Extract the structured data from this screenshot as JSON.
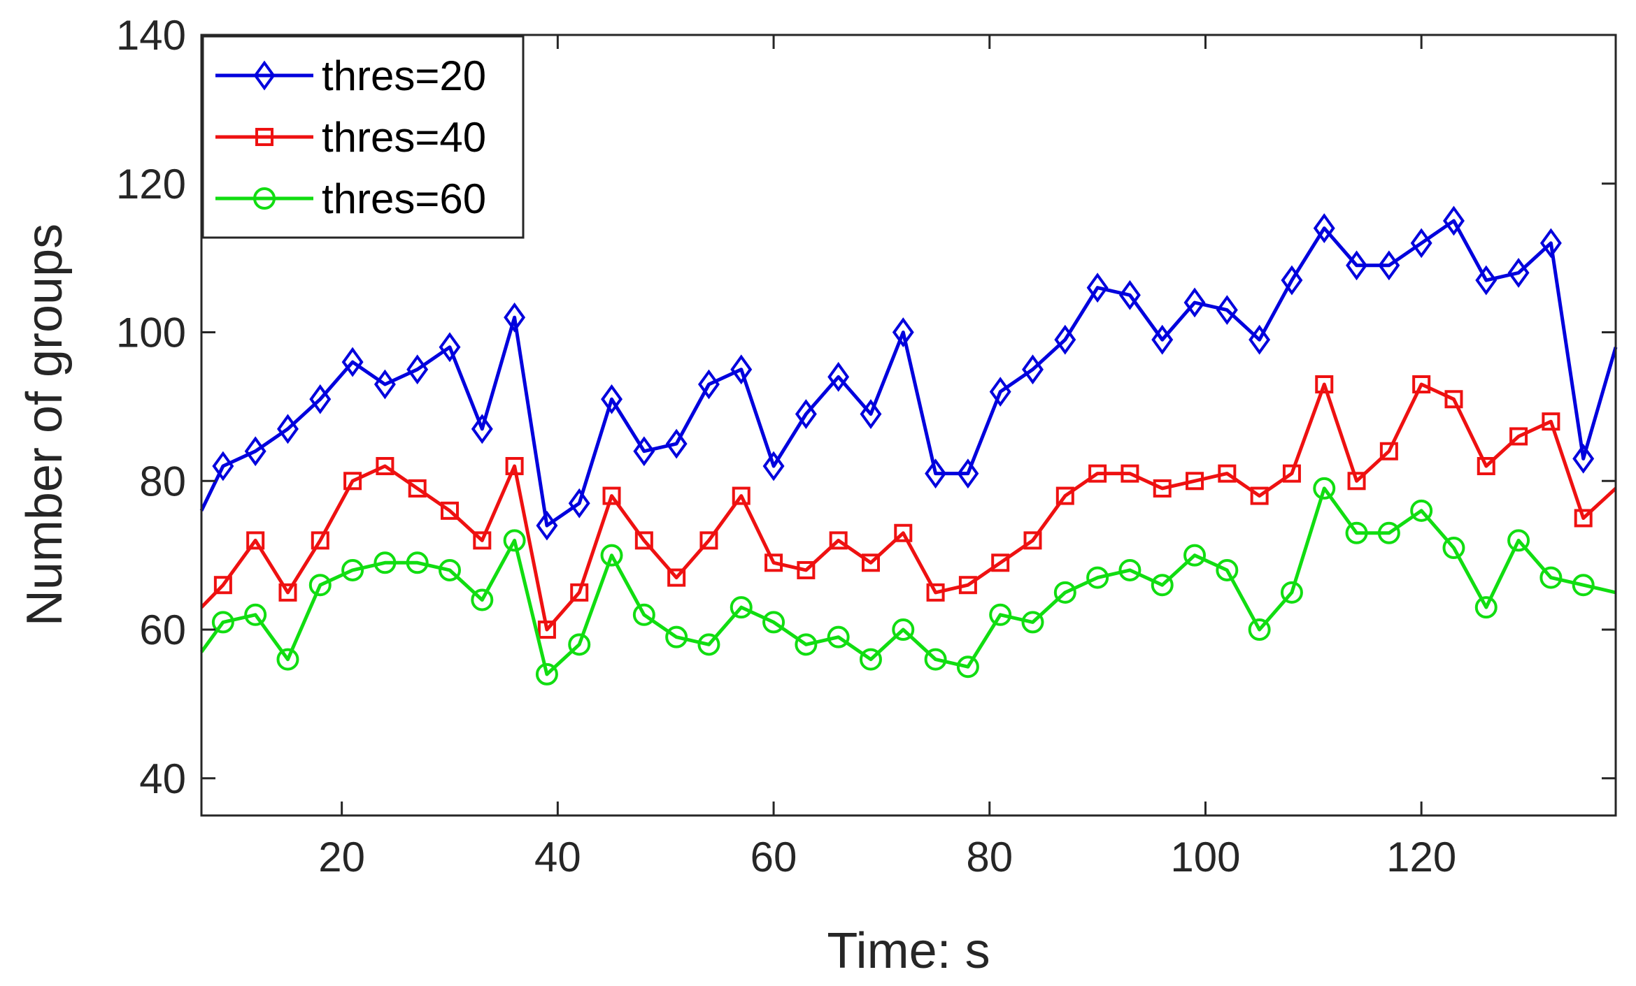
{
  "chart_data": {
    "type": "line",
    "xlabel": "Time: s",
    "ylabel": "Number of groups",
    "xlim": [
      7,
      138
    ],
    "ylim": [
      35,
      140
    ],
    "xticks": [
      20,
      40,
      60,
      80,
      100,
      120
    ],
    "yticks": [
      40,
      60,
      80,
      100,
      120,
      140
    ],
    "legend_position": "top-left",
    "grid": false,
    "x": [
      9,
      12,
      15,
      18,
      21,
      24,
      27,
      30,
      33,
      36,
      39,
      42,
      45,
      48,
      51,
      54,
      57,
      60,
      63,
      66,
      69,
      72,
      75,
      78,
      81,
      84,
      87,
      90,
      93,
      96,
      99,
      102,
      105,
      108,
      111,
      114,
      117,
      120,
      123,
      126,
      129,
      132,
      135
    ],
    "series": [
      {
        "name": "thres=20",
        "color": "#0000dd",
        "marker": "diamond",
        "start": 76,
        "end": 98,
        "values": [
          82,
          84,
          87,
          91,
          96,
          93,
          95,
          98,
          87,
          102,
          74,
          77,
          91,
          84,
          85,
          93,
          95,
          82,
          89,
          94,
          89,
          100,
          81,
          81,
          92,
          95,
          99,
          106,
          105,
          99,
          104,
          103,
          99,
          107,
          114,
          109,
          109,
          112,
          115,
          107,
          108,
          112,
          83
        ]
      },
      {
        "name": "thres=40",
        "color": "#ee1111",
        "marker": "square",
        "start": 63,
        "end": 79,
        "values": [
          66,
          72,
          65,
          72,
          80,
          82,
          79,
          76,
          72,
          82,
          60,
          65,
          78,
          72,
          67,
          72,
          78,
          69,
          68,
          72,
          69,
          73,
          65,
          66,
          69,
          72,
          78,
          81,
          81,
          79,
          80,
          81,
          78,
          81,
          93,
          80,
          84,
          93,
          91,
          82,
          86,
          88,
          75
        ]
      },
      {
        "name": "thres=60",
        "color": "#11dd11",
        "marker": "circle",
        "start": 57,
        "end": 65,
        "values": [
          61,
          62,
          56,
          66,
          68,
          69,
          69,
          68,
          64,
          72,
          54,
          58,
          70,
          62,
          59,
          58,
          63,
          61,
          58,
          59,
          56,
          60,
          56,
          55,
          62,
          61,
          65,
          67,
          68,
          66,
          70,
          68,
          60,
          65,
          79,
          73,
          73,
          76,
          71,
          63,
          72,
          67,
          66
        ]
      }
    ]
  }
}
